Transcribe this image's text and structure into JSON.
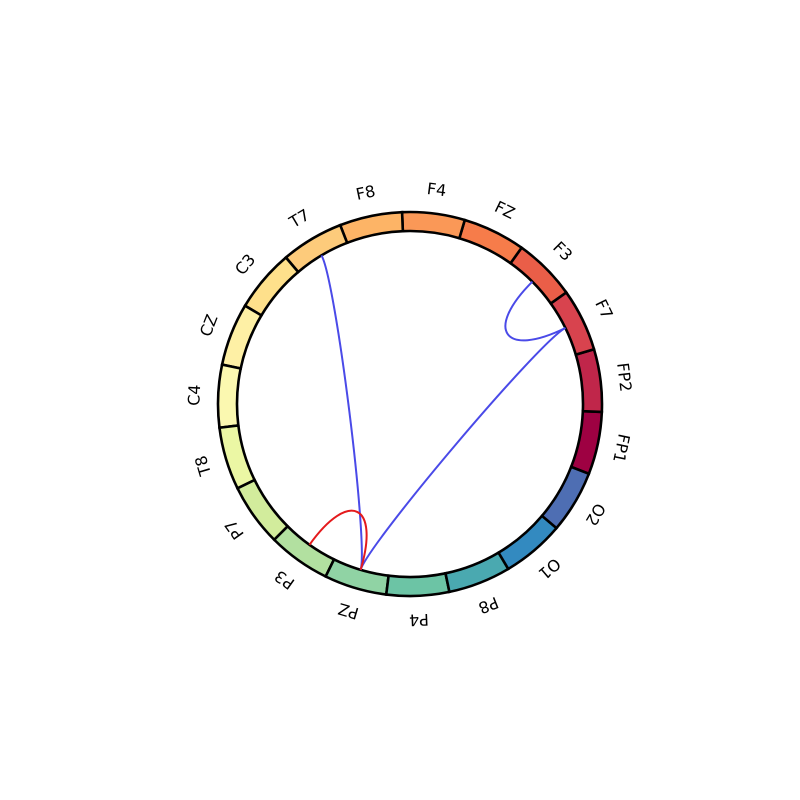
{
  "chart_data": {
    "type": "chord",
    "title": "",
    "nodes": [
      {
        "label": "FP1",
        "color": "#9e0142"
      },
      {
        "label": "FP2",
        "color": "#c0264a"
      },
      {
        "label": "F7",
        "color": "#d8434e"
      },
      {
        "label": "F3",
        "color": "#ea5e48"
      },
      {
        "label": "FZ",
        "color": "#f67c4a"
      },
      {
        "label": "F4",
        "color": "#fa9857"
      },
      {
        "label": "F8",
        "color": "#fdb466"
      },
      {
        "label": "T7",
        "color": "#fdcb7b"
      },
      {
        "label": "C3",
        "color": "#fee08b"
      },
      {
        "label": "CZ",
        "color": "#fef0a5"
      },
      {
        "label": "C4",
        "color": "#fbf8b0"
      },
      {
        "label": "T8",
        "color": "#ebf7a4"
      },
      {
        "label": "P7",
        "color": "#d2ec9c"
      },
      {
        "label": "P3",
        "color": "#b2e0a0"
      },
      {
        "label": "PZ",
        "color": "#90d3a4"
      },
      {
        "label": "P4",
        "color": "#6cc4a5"
      },
      {
        "label": "P8",
        "color": "#4aa9b0"
      },
      {
        "label": "O1",
        "color": "#338ac0"
      },
      {
        "label": "O2",
        "color": "#4e6eb3"
      }
    ],
    "connections": [
      {
        "from": "T7",
        "to": "PZ",
        "color": "#4a4ae8"
      },
      {
        "from": "F7",
        "to": "PZ",
        "color": "#4a4ae8"
      },
      {
        "from": "F3",
        "to": "F7",
        "color": "#4a4ae8"
      },
      {
        "from": "P3",
        "to": "PZ",
        "color": "#e41a1c"
      }
    ]
  }
}
